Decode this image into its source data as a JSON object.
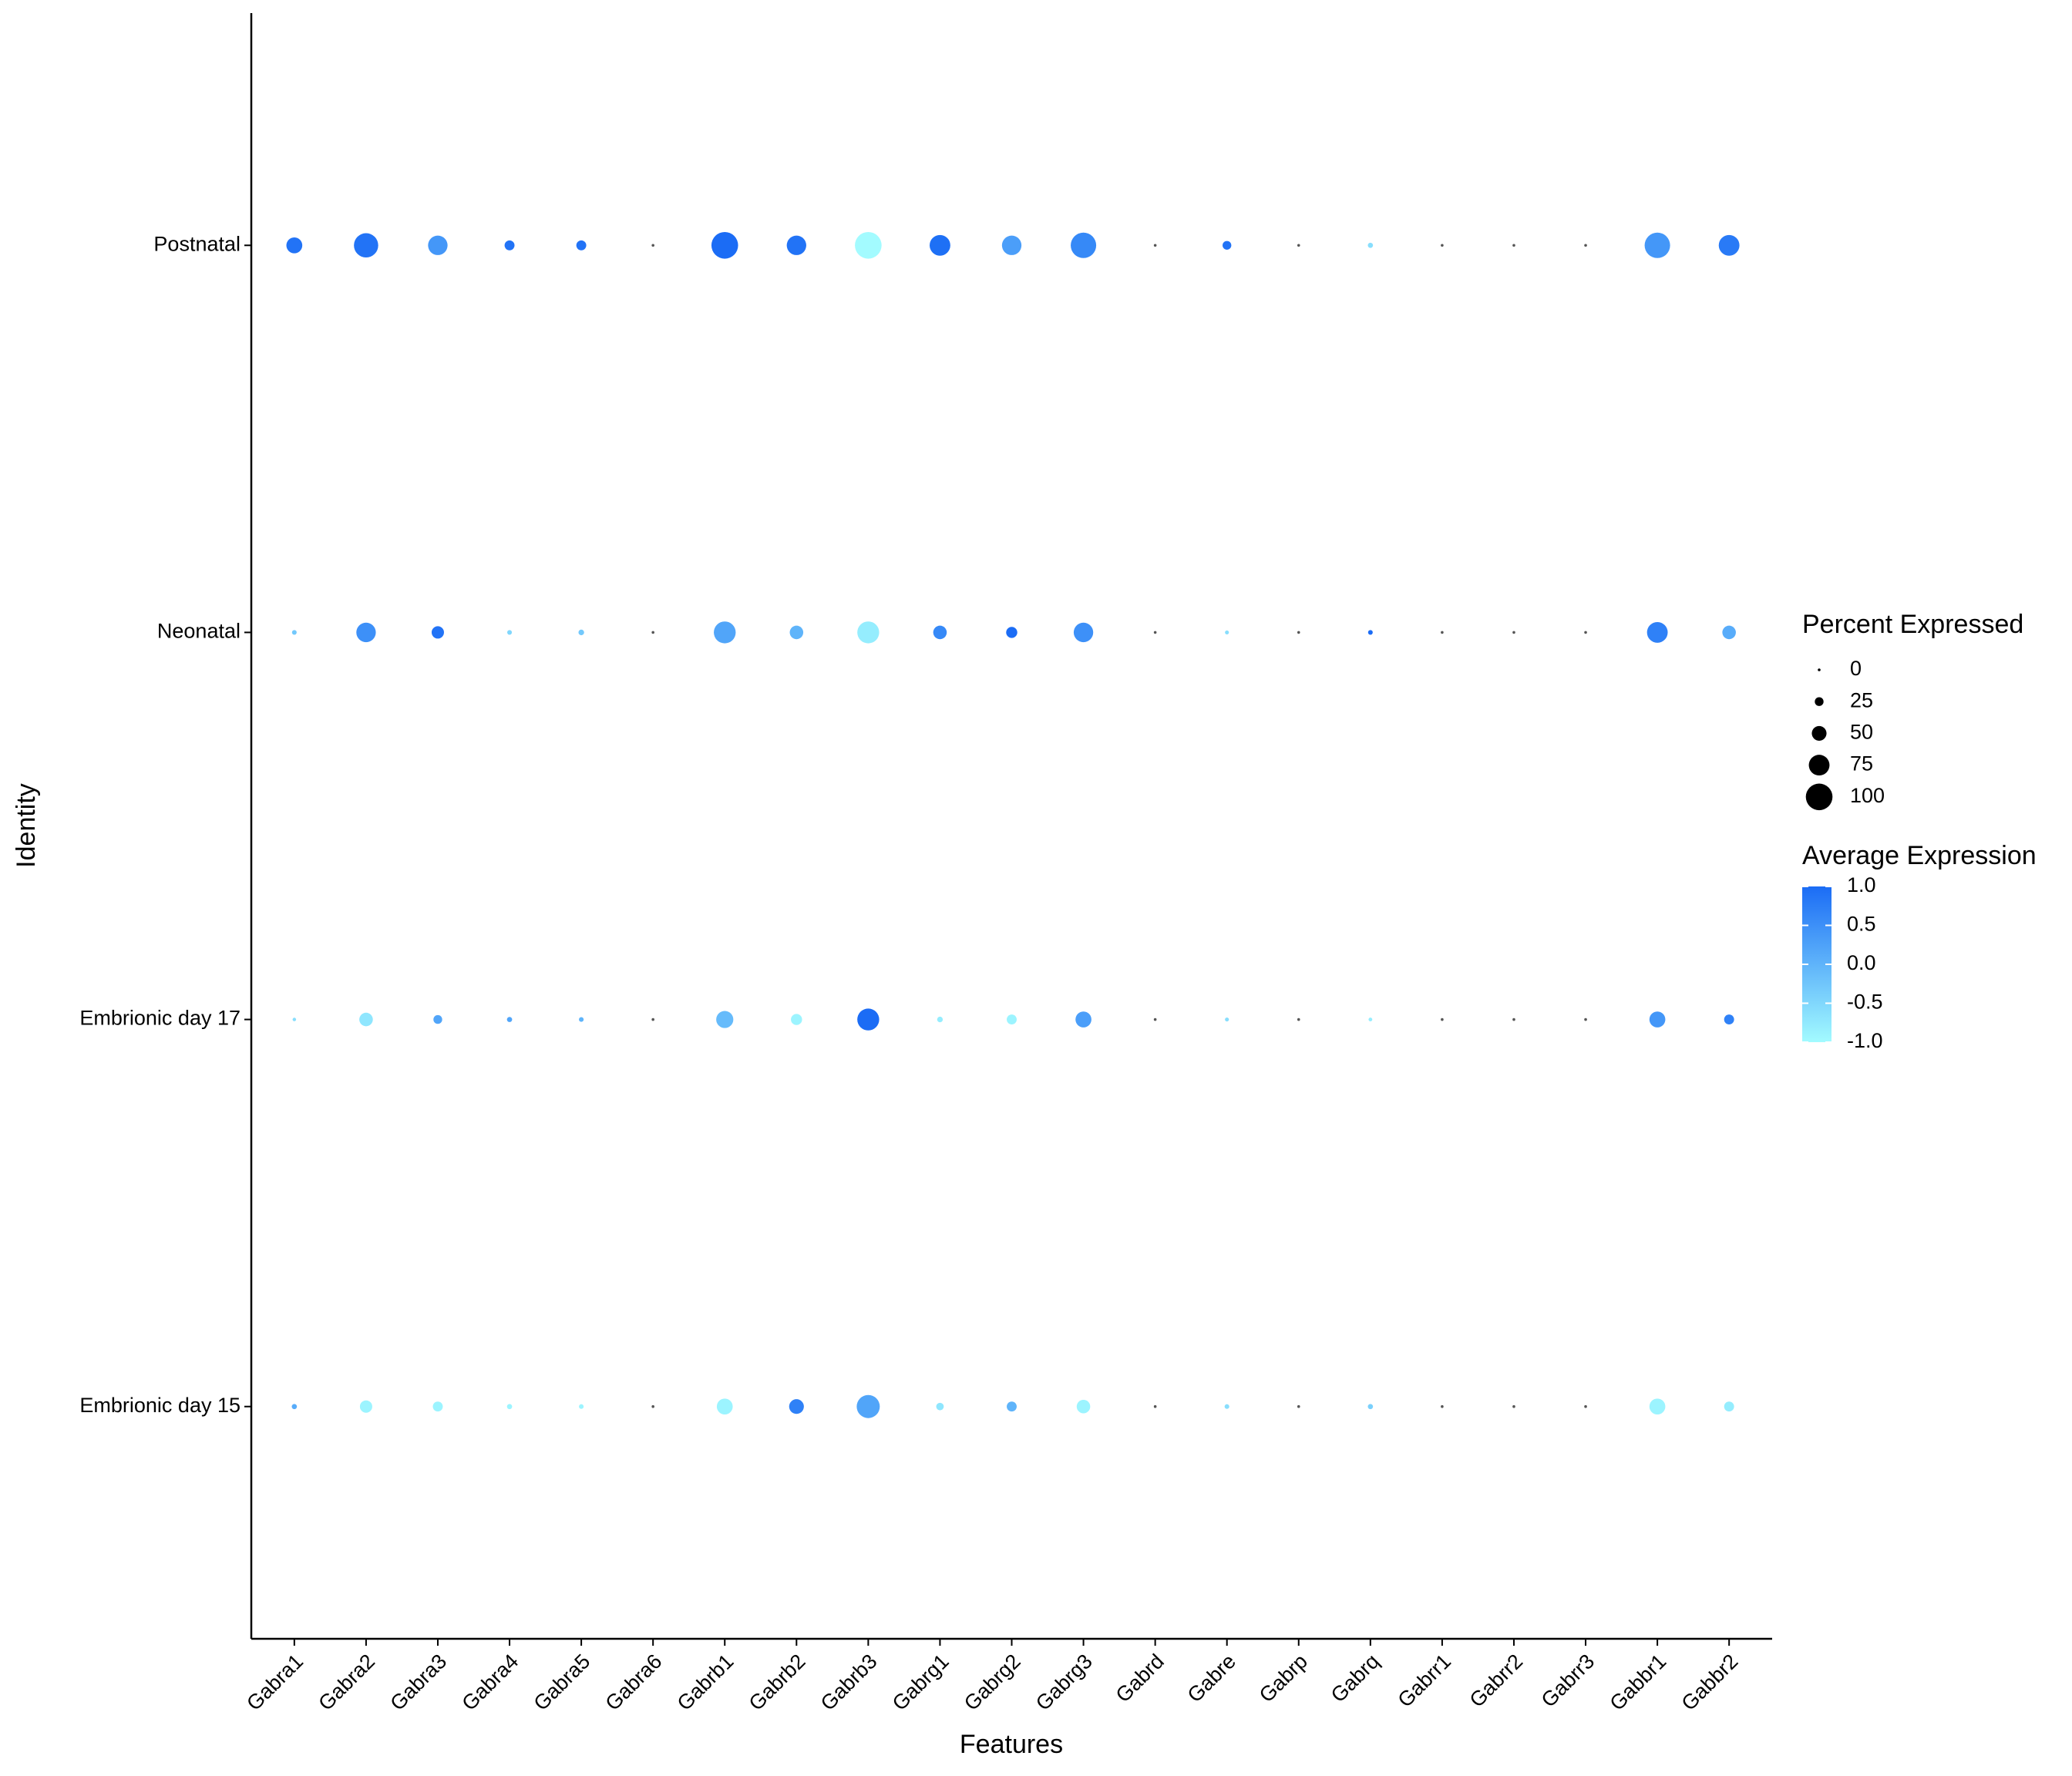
{
  "chart_data": {
    "type": "dot",
    "x_label": "Features",
    "y_label": "Identity",
    "categories": [
      "Gabra1",
      "Gabra2",
      "Gabra3",
      "Gabra4",
      "Gabra5",
      "Gabra6",
      "Gabrb1",
      "Gabrb2",
      "Gabrb3",
      "Gabrg1",
      "Gabrg2",
      "Gabrg3",
      "Gabrd",
      "Gabre",
      "Gabrp",
      "Gabrq",
      "Gabrr1",
      "Gabrr2",
      "Gabrr3",
      "Gabbr1",
      "Gabbr2"
    ],
    "series": [
      {
        "name": "Embrionic day 15",
        "values": [
          10,
          40,
          30,
          10,
          8,
          0,
          55,
          50,
          85,
          20,
          30,
          45,
          0,
          8,
          0,
          10,
          0,
          0,
          0,
          55,
          30
        ],
        "avg": [
          0.1,
          -0.9,
          -0.9,
          -0.9,
          -0.9,
          null,
          -0.9,
          0.7,
          0.2,
          -0.7,
          0,
          -0.9,
          null,
          -0.6,
          null,
          -0.4,
          null,
          null,
          null,
          -0.9,
          -0.8
        ]
      },
      {
        "name": "Embrionic day 17",
        "values": [
          3,
          45,
          25,
          10,
          8,
          0,
          60,
          35,
          80,
          12,
          30,
          55,
          0,
          5,
          0,
          4,
          0,
          0,
          0,
          55,
          30
        ],
        "avg": [
          -0.6,
          -0.7,
          0.2,
          0.2,
          0,
          null,
          -0.1,
          -0.9,
          1,
          -0.8,
          -0.9,
          0.3,
          null,
          -0.6,
          null,
          -0.8,
          null,
          null,
          null,
          0.4,
          0.7
        ]
      },
      {
        "name": "Neonatal",
        "values": [
          8,
          70,
          40,
          8,
          12,
          0,
          80,
          45,
          80,
          45,
          35,
          70,
          0,
          5,
          0,
          8,
          0,
          0,
          0,
          75,
          45
        ],
        "avg": [
          -0.3,
          0.5,
          0.9,
          -0.5,
          -0.3,
          null,
          0.2,
          0,
          -0.8,
          0.6,
          1,
          0.5,
          null,
          -0.6,
          null,
          1,
          null,
          null,
          null,
          0.7,
          0.1
        ]
      },
      {
        "name": "Postnatal",
        "values": [
          55,
          90,
          70,
          30,
          30,
          0,
          100,
          70,
          100,
          75,
          70,
          95,
          0,
          25,
          0,
          10,
          0,
          0,
          0,
          95,
          75
        ],
        "avg": [
          0.9,
          0.9,
          0.4,
          0.9,
          0.9,
          null,
          1,
          0.9,
          -1,
          0.95,
          0.3,
          0.6,
          null,
          0.9,
          null,
          -0.6,
          null,
          null,
          null,
          0.4,
          0.8
        ]
      }
    ],
    "size_lim": [
      0,
      100
    ],
    "color_low": "#a3fbff",
    "color_high": "#1b6cf5",
    "na_color": "#555555",
    "size_legend": {
      "title": "Percent Expressed",
      "values": [
        0,
        25,
        50,
        75,
        100
      ]
    },
    "color_legend": {
      "title": "Average Expression",
      "lim": [
        -1,
        1
      ],
      "ticks": [
        {
          "value": 1,
          "label": "1.0"
        },
        0.5,
        {
          "value": 0,
          "label": "0.0"
        },
        -0.5,
        {
          "value": -1,
          "label": "-1.0"
        }
      ]
    }
  }
}
